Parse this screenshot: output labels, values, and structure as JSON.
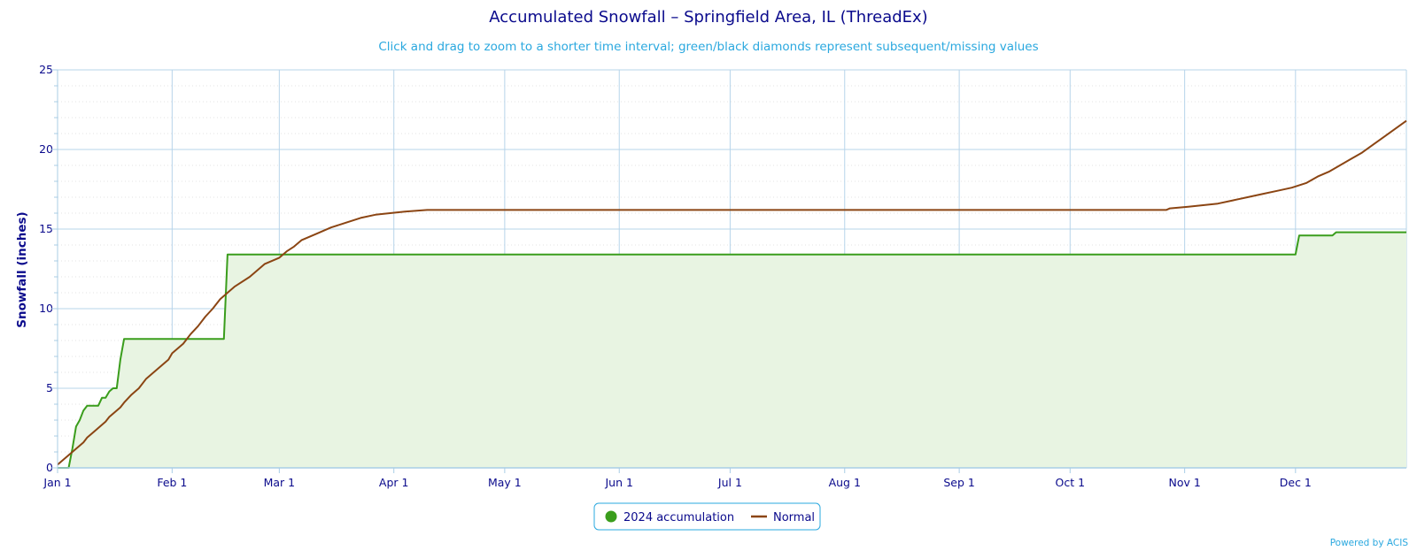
{
  "colors": {
    "accumulation": "#3a9d1c",
    "accumulation_fill": "#e8f4e2",
    "normal": "#8b4513",
    "grid_major": "#b7d4ea",
    "axis": "#a8cde6",
    "text": "#0a0a8c",
    "subtitle": "#2aa8df"
  },
  "chart_data": {
    "type": "area",
    "title": "Accumulated Snowfall – Springfield Area, IL (ThreadEx)",
    "subtitle": "Click and drag to zoom to a shorter time interval; green/black diamonds represent subsequent/missing values",
    "ylabel": "Snowfall (inches)",
    "xlabel": "",
    "ylim": [
      0,
      25
    ],
    "y_ticks": [
      0,
      5,
      10,
      15,
      20,
      25
    ],
    "x_domain_days": [
      0,
      365
    ],
    "x_ticks": [
      {
        "label": "Jan 1",
        "day": 0
      },
      {
        "label": "Feb 1",
        "day": 31
      },
      {
        "label": "Mar 1",
        "day": 60
      },
      {
        "label": "Apr 1",
        "day": 91
      },
      {
        "label": "May 1",
        "day": 121
      },
      {
        "label": "Jun 1",
        "day": 152
      },
      {
        "label": "Jul 1",
        "day": 182
      },
      {
        "label": "Aug 1",
        "day": 213
      },
      {
        "label": "Sep 1",
        "day": 244
      },
      {
        "label": "Oct 1",
        "day": 274
      },
      {
        "label": "Nov 1",
        "day": 305
      },
      {
        "label": "Dec 1",
        "day": 335
      }
    ],
    "grid": true,
    "legend_position": "bottom-center",
    "series": [
      {
        "name": "2024 accumulation",
        "style": "area-step",
        "points": [
          [
            0,
            0
          ],
          [
            3,
            0
          ],
          [
            4,
            1.2
          ],
          [
            5,
            2.6
          ],
          [
            6,
            3.0
          ],
          [
            7,
            3.6
          ],
          [
            8,
            3.9
          ],
          [
            9,
            3.9
          ],
          [
            10,
            3.9
          ],
          [
            11,
            3.9
          ],
          [
            12,
            4.4
          ],
          [
            13,
            4.4
          ],
          [
            14,
            4.8
          ],
          [
            15,
            5.0
          ],
          [
            16,
            5.0
          ],
          [
            17,
            6.8
          ],
          [
            18,
            8.1
          ],
          [
            19,
            8.1
          ],
          [
            30,
            8.1
          ],
          [
            40,
            8.1
          ],
          [
            45,
            8.1
          ],
          [
            46,
            13.4
          ],
          [
            60,
            13.4
          ],
          [
            120,
            13.4
          ],
          [
            200,
            13.4
          ],
          [
            300,
            13.4
          ],
          [
            335,
            13.4
          ],
          [
            336,
            14.6
          ],
          [
            345,
            14.6
          ],
          [
            346,
            14.8
          ],
          [
            365,
            14.8
          ]
        ]
      },
      {
        "name": "Normal",
        "style": "line",
        "points": [
          [
            0,
            0.2
          ],
          [
            3,
            0.8
          ],
          [
            5,
            1.2
          ],
          [
            7,
            1.6
          ],
          [
            8,
            1.9
          ],
          [
            10,
            2.3
          ],
          [
            13,
            2.9
          ],
          [
            14,
            3.2
          ],
          [
            17,
            3.8
          ],
          [
            18,
            4.1
          ],
          [
            20,
            4.6
          ],
          [
            22,
            5.0
          ],
          [
            24,
            5.6
          ],
          [
            27,
            6.2
          ],
          [
            30,
            6.8
          ],
          [
            31,
            7.2
          ],
          [
            34,
            7.8
          ],
          [
            36,
            8.4
          ],
          [
            38,
            8.9
          ],
          [
            40,
            9.5
          ],
          [
            42,
            10.0
          ],
          [
            44,
            10.6
          ],
          [
            46,
            11.0
          ],
          [
            48,
            11.4
          ],
          [
            52,
            12.0
          ],
          [
            56,
            12.8
          ],
          [
            60,
            13.2
          ],
          [
            62,
            13.6
          ],
          [
            64,
            13.9
          ],
          [
            66,
            14.3
          ],
          [
            70,
            14.7
          ],
          [
            74,
            15.1
          ],
          [
            78,
            15.4
          ],
          [
            82,
            15.7
          ],
          [
            86,
            15.9
          ],
          [
            90,
            16.0
          ],
          [
            94,
            16.1
          ],
          [
            100,
            16.2
          ],
          [
            110,
            16.2
          ],
          [
            150,
            16.2
          ],
          [
            200,
            16.2
          ],
          [
            250,
            16.2
          ],
          [
            300,
            16.2
          ],
          [
            301,
            16.3
          ],
          [
            306,
            16.4
          ],
          [
            310,
            16.5
          ],
          [
            314,
            16.6
          ],
          [
            318,
            16.8
          ],
          [
            322,
            17.0
          ],
          [
            326,
            17.2
          ],
          [
            330,
            17.4
          ],
          [
            334,
            17.6
          ],
          [
            338,
            17.9
          ],
          [
            341,
            18.3
          ],
          [
            344,
            18.6
          ],
          [
            347,
            19.0
          ],
          [
            350,
            19.4
          ],
          [
            353,
            19.8
          ],
          [
            356,
            20.3
          ],
          [
            359,
            20.8
          ],
          [
            362,
            21.3
          ],
          [
            365,
            21.8
          ]
        ]
      }
    ]
  },
  "credit": "Powered by ACIS"
}
